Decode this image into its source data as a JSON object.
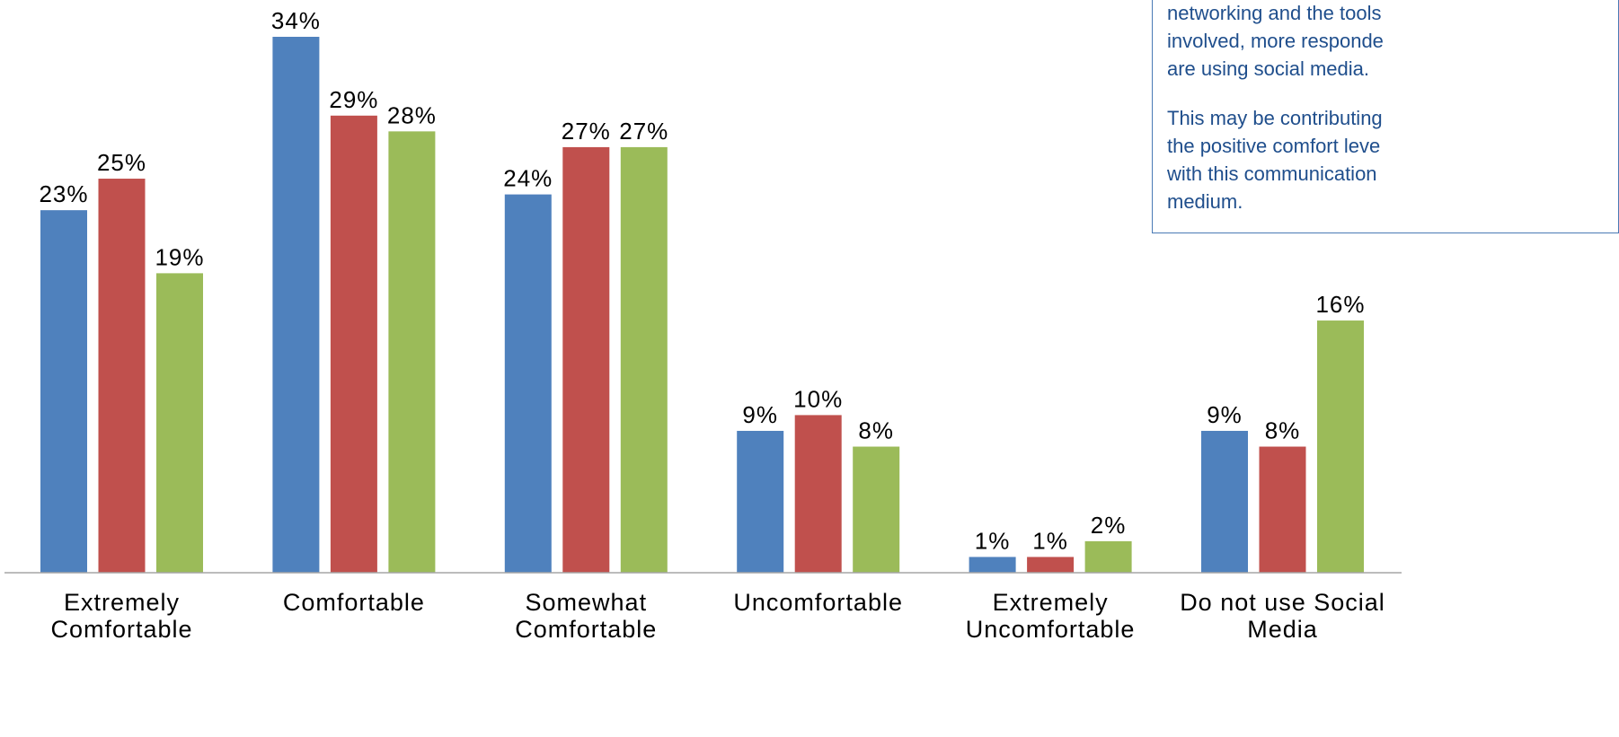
{
  "chart_data": {
    "type": "bar",
    "categories": [
      "Extremely\nComfortable",
      "Comfortable",
      "Somewhat\nComfortable",
      "Uncomfortable",
      "Extremely\nUncomfortable",
      "Do not use Social\nMedia"
    ],
    "series": [
      {
        "color": "#4f81bd",
        "values": [
          23,
          34,
          24,
          9,
          1,
          9
        ],
        "labels": [
          "23%",
          "34%",
          "24%",
          "9%",
          "1%",
          "9%"
        ]
      },
      {
        "color": "#c0504d",
        "values": [
          25,
          29,
          27,
          10,
          1,
          8
        ],
        "labels": [
          "25%",
          "29%",
          "27%",
          "10%",
          "1%",
          "8%"
        ]
      },
      {
        "color": "#9bbb59",
        "values": [
          19,
          28,
          27,
          8,
          2,
          16
        ],
        "labels": [
          "19%",
          "28%",
          "27%",
          "8%",
          "2%",
          "16%"
        ]
      }
    ],
    "ylim": [
      0,
      34
    ],
    "grid": false,
    "title": "",
    "xlabel": "",
    "ylabel": ""
  },
  "annotation": {
    "paragraphs": [
      "networking and the tools\ninvolved, more responde\nare using social media.",
      "This may be contributing\nthe positive comfort leve\nwith this communication\nmedium."
    ]
  },
  "colors": {
    "axis": "#a6a6a6",
    "note_border": "#4a7ab5",
    "note_text": "#1f4e8c"
  }
}
